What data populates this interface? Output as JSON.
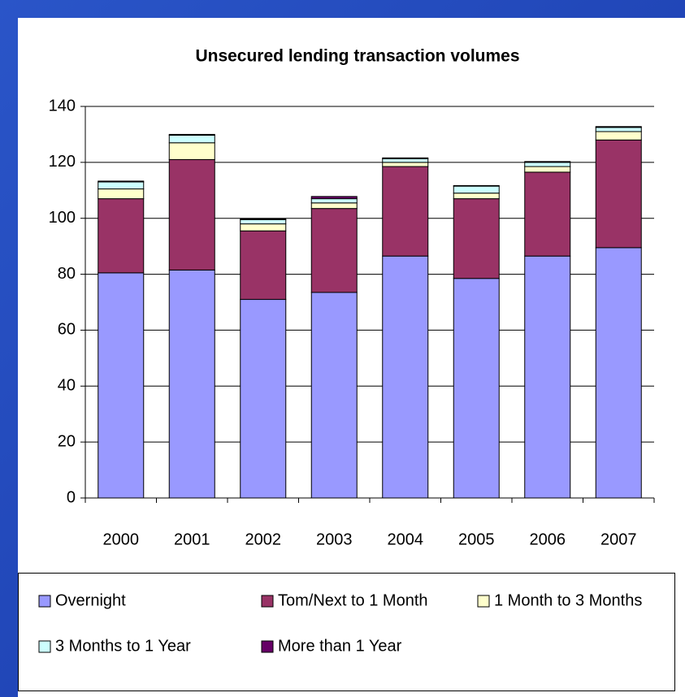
{
  "chart_data": {
    "type": "bar",
    "stacked": true,
    "title": "Unsecured lending transaction volumes",
    "categories": [
      "2000",
      "2001",
      "2002",
      "2003",
      "2004",
      "2005",
      "2006",
      "2007"
    ],
    "series": [
      {
        "name": "Overnight",
        "color": "#9999ff",
        "values": [
          80.5,
          81.5,
          71,
          73.5,
          86.5,
          78.5,
          86.5,
          89.5
        ]
      },
      {
        "name": "Tom/Next  to 1 Month",
        "color": "#993366",
        "values": [
          26.5,
          39.5,
          24.5,
          30,
          32,
          28.5,
          30,
          38.5
        ]
      },
      {
        "name": "1 Month to 3 Months",
        "color": "#ffffcc",
        "values": [
          3.5,
          6,
          2.5,
          2,
          1.5,
          2,
          2,
          3
        ]
      },
      {
        "name": "3 Months to 1 Year",
        "color": "#ccffff",
        "values": [
          2.5,
          2.7,
          1.5,
          1.5,
          1.3,
          2.5,
          1.5,
          1.5
        ]
      },
      {
        "name": "More than 1 Year",
        "color": "#660066",
        "values": [
          0.3,
          0.3,
          0.3,
          0.8,
          0.3,
          0.2,
          0.3,
          0.3
        ]
      }
    ],
    "ylim": [
      0,
      140
    ],
    "yticks": [
      0,
      20,
      40,
      60,
      80,
      100,
      120,
      140
    ],
    "grid": true
  }
}
